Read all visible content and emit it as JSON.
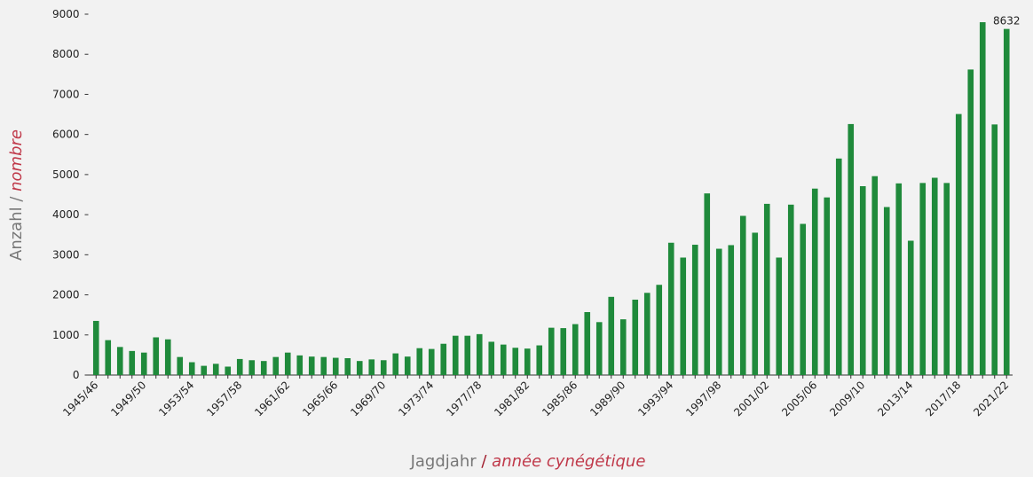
{
  "chart_data": {
    "type": "bar",
    "y_label": {
      "de": "Anzahl",
      "separator": "/",
      "fr": "nombre"
    },
    "x_label": {
      "de": "Jagdjahr",
      "separator": "/",
      "fr": "année cynégétique"
    },
    "categories": [
      "1945/46",
      null,
      null,
      null,
      "1949/50",
      null,
      null,
      null,
      "1953/54",
      null,
      null,
      null,
      "1957/58",
      null,
      null,
      null,
      "1961/62",
      null,
      null,
      null,
      "1965/66",
      null,
      null,
      null,
      "1969/70",
      null,
      null,
      null,
      "1973/74",
      null,
      null,
      null,
      "1977/78",
      null,
      null,
      null,
      "1981/82",
      null,
      null,
      null,
      "1985/86",
      null,
      null,
      null,
      "1989/90",
      null,
      null,
      null,
      "1993/94",
      null,
      null,
      null,
      "1997/98",
      null,
      null,
      null,
      "2001/02",
      null,
      null,
      null,
      "2005/06",
      null,
      null,
      null,
      "2009/10",
      null,
      null,
      null,
      "2013/14",
      null,
      null,
      null,
      "2017/18",
      null,
      null,
      null,
      "2021/22"
    ],
    "values": [
      1350,
      870,
      700,
      600,
      560,
      940,
      890,
      450,
      320,
      230,
      280,
      210,
      400,
      370,
      350,
      450,
      560,
      490,
      460,
      450,
      430,
      420,
      350,
      390,
      370,
      540,
      460,
      670,
      650,
      780,
      980,
      980,
      1020,
      830,
      760,
      680,
      660,
      740,
      1180,
      1170,
      1270,
      1570,
      1320,
      1950,
      1390,
      1880,
      2050,
      2250,
      3300,
      2930,
      3250,
      4530,
      3150,
      3240,
      3970,
      3550,
      4270,
      2930,
      4250,
      3770,
      4650,
      4430,
      5400,
      6260,
      4710,
      4960,
      4190,
      4780,
      3350,
      4790,
      4920,
      4790,
      6510,
      7620,
      8800,
      6250,
      8632
    ],
    "labeled_values": [
      76
    ],
    "color": "#1f8a3b",
    "ylim": [
      0,
      9000
    ],
    "yticks": [
      0,
      1000,
      2000,
      3000,
      4000,
      5000,
      6000,
      7000,
      8000,
      9000
    ],
    "grid": false
  }
}
